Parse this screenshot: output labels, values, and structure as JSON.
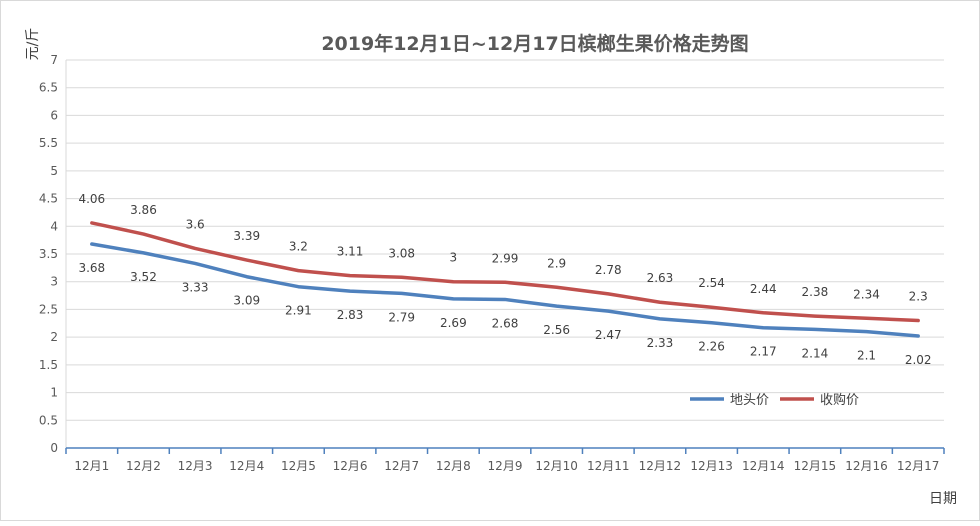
{
  "chart_data": {
    "type": "line",
    "title": "2019年12月1日~12月17日槟榔生果价格走势图",
    "xlabel": "日期",
    "ylabel": "元/斤",
    "ylim": [
      0,
      7
    ],
    "yticks": [
      "0",
      "0.5",
      "1",
      "1.5",
      "2",
      "2.5",
      "3",
      "3.5",
      "4",
      "4.5",
      "5",
      "5.5",
      "6",
      "6.5",
      "7"
    ],
    "categories": [
      "12月1",
      "12月2",
      "12月3",
      "12月4",
      "12月5",
      "12月6",
      "12月7",
      "12月8",
      "12月9",
      "12月10",
      "12月11",
      "12月12",
      "12月13",
      "12月14",
      "12月15",
      "12月16",
      "12月17"
    ],
    "grid": true,
    "legend": "bottom-right",
    "series": [
      {
        "name": "地头价",
        "color": "#4f81bd",
        "values": [
          3.68,
          3.52,
          3.33,
          3.09,
          2.91,
          2.83,
          2.79,
          2.69,
          2.68,
          2.56,
          2.47,
          2.33,
          2.26,
          2.17,
          2.14,
          2.1,
          2.02
        ],
        "labels": [
          "3.68",
          "3.52",
          "3.33",
          "3.09",
          "2.91",
          "2.83",
          "2.79",
          "2.69",
          "2.68",
          "2.56",
          "2.47",
          "2.33",
          "2.26",
          "2.17",
          "2.14",
          "2.1",
          "2.02"
        ]
      },
      {
        "name": "收购价",
        "color": "#c0504d",
        "values": [
          4.06,
          3.86,
          3.6,
          3.39,
          3.2,
          3.11,
          3.08,
          3,
          2.99,
          2.9,
          2.78,
          2.63,
          2.54,
          2.44,
          2.38,
          2.34,
          2.3
        ],
        "labels": [
          "4.06",
          "3.86",
          "3.6",
          "3.39",
          "3.2",
          "3.11",
          "3.08",
          "3",
          "2.99",
          "2.9",
          "2.78",
          "2.63",
          "2.54",
          "2.44",
          "2.38",
          "2.34",
          "2.3"
        ]
      }
    ]
  }
}
